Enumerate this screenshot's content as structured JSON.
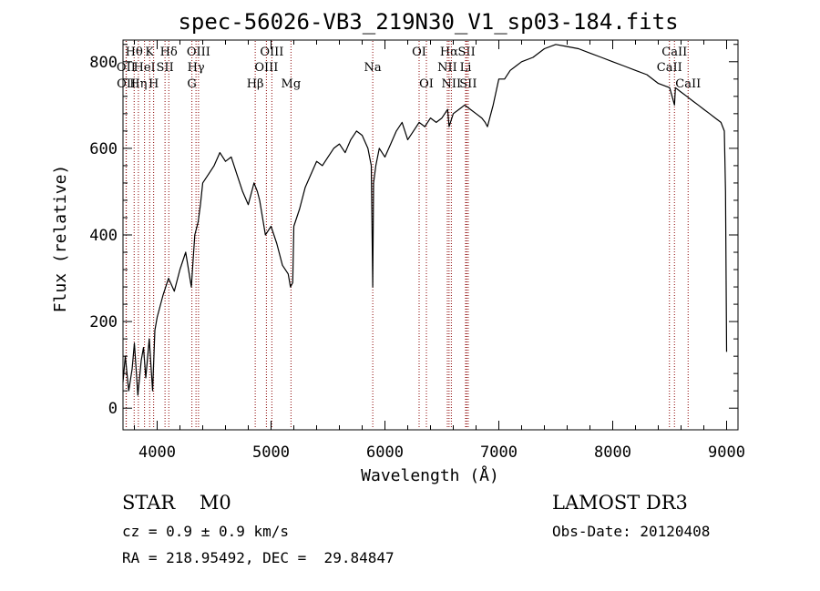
{
  "chart_data": {
    "type": "line",
    "title": "spec-56026-VB3_219N30_V1_sp03-184.fits",
    "xlabel": "Wavelength (Å)",
    "ylabel": "Flux (relative)",
    "xlim": [
      3700,
      9100
    ],
    "ylim": [
      -50,
      850
    ],
    "xticks": [
      4000,
      5000,
      6000,
      7000,
      8000,
      9000
    ],
    "yticks": [
      0,
      200,
      400,
      600,
      800
    ],
    "grid": false,
    "colors": {
      "spectrum": "#000000",
      "line_marker": "#8b0000"
    },
    "series": [
      {
        "x": [
          3700,
          3720,
          3750,
          3780,
          3800,
          3830,
          3860,
          3880,
          3900,
          3930,
          3960,
          3980,
          4000,
          4050,
          4100,
          4150,
          4200,
          4250,
          4300,
          4330,
          4360,
          4380,
          4400,
          4450,
          4500,
          4550,
          4600,
          4650,
          4700,
          4750,
          4800,
          4850,
          4880,
          4900,
          4950,
          5000,
          5050,
          5100,
          5150,
          5170,
          5190,
          5200,
          5250,
          5300,
          5350,
          5400,
          5450,
          5500,
          5550,
          5600,
          5650,
          5700,
          5750,
          5800,
          5850,
          5880,
          5893,
          5900,
          5920,
          5950,
          6000,
          6050,
          6100,
          6150,
          6200,
          6250,
          6300,
          6350,
          6400,
          6450,
          6500,
          6550,
          6563,
          6600,
          6650,
          6700,
          6750,
          6800,
          6850,
          6880,
          6900,
          6950,
          7000,
          7050,
          7100,
          7150,
          7200,
          7300,
          7400,
          7500,
          7600,
          7700,
          7800,
          7900,
          8000,
          8100,
          8200,
          8300,
          8400,
          8500,
          8542,
          8550,
          8600,
          8650,
          8700,
          8750,
          8800,
          8850,
          8900,
          8950,
          8980,
          8990,
          9000
        ],
        "y": [
          60,
          120,
          40,
          90,
          150,
          30,
          110,
          140,
          70,
          160,
          40,
          180,
          210,
          260,
          300,
          270,
          320,
          360,
          280,
          400,
          430,
          470,
          520,
          540,
          560,
          590,
          570,
          580,
          540,
          500,
          470,
          520,
          500,
          480,
          400,
          420,
          380,
          330,
          310,
          280,
          290,
          420,
          460,
          510,
          540,
          570,
          560,
          580,
          600,
          610,
          590,
          620,
          640,
          630,
          600,
          560,
          280,
          520,
          560,
          600,
          580,
          610,
          640,
          660,
          620,
          640,
          660,
          650,
          670,
          660,
          670,
          690,
          650,
          680,
          690,
          700,
          690,
          680,
          670,
          660,
          650,
          700,
          760,
          760,
          780,
          790,
          800,
          810,
          830,
          840,
          835,
          830,
          820,
          810,
          800,
          790,
          780,
          770,
          750,
          740,
          700,
          740,
          730,
          720,
          710,
          700,
          690,
          680,
          670,
          660,
          640,
          500,
          130
        ]
      }
    ],
    "line_markers": [
      {
        "label": "Hθ",
        "wl": 3798,
        "row": 0
      },
      {
        "label": "OII",
        "wl": 3727,
        "row": 1
      },
      {
        "label": "OII",
        "wl": 3729,
        "row": 2
      },
      {
        "label": "K",
        "wl": 3934,
        "row": 0
      },
      {
        "label": "HeI",
        "wl": 3889,
        "row": 1
      },
      {
        "label": "Hη",
        "wl": 3835,
        "row": 2
      },
      {
        "label": "H",
        "wl": 3969,
        "row": 2
      },
      {
        "label": "SII",
        "wl": 4069,
        "row": 1
      },
      {
        "label": "Hδ",
        "wl": 4102,
        "row": 0
      },
      {
        "label": "OIII",
        "wl": 4363,
        "row": 0
      },
      {
        "label": "Hγ",
        "wl": 4341,
        "row": 1
      },
      {
        "label": "G",
        "wl": 4305,
        "row": 2
      },
      {
        "label": "Hβ",
        "wl": 4861,
        "row": 2
      },
      {
        "label": "OIII",
        "wl": 5007,
        "row": 0
      },
      {
        "label": "OIII",
        "wl": 4959,
        "row": 1
      },
      {
        "label": "Mg",
        "wl": 5175,
        "row": 2
      },
      {
        "label": "Na",
        "wl": 5893,
        "row": 1
      },
      {
        "label": "OI",
        "wl": 6300,
        "row": 0
      },
      {
        "label": "OI",
        "wl": 6364,
        "row": 2
      },
      {
        "label": "Hα",
        "wl": 6563,
        "row": 0
      },
      {
        "label": "SII",
        "wl": 6717,
        "row": 0
      },
      {
        "label": "NII",
        "wl": 6548,
        "row": 1
      },
      {
        "label": "Li",
        "wl": 6708,
        "row": 1
      },
      {
        "label": "NII",
        "wl": 6583,
        "row": 2
      },
      {
        "label": "SII",
        "wl": 6731,
        "row": 2
      },
      {
        "label": "CaII",
        "wl": 8542,
        "row": 0
      },
      {
        "label": "CaII",
        "wl": 8498,
        "row": 1
      },
      {
        "label": "CaII",
        "wl": 8662,
        "row": 2
      }
    ]
  },
  "info": {
    "class_line": "STAR    M0",
    "survey": "LAMOST DR3",
    "cz": "cz = 0.9 ± 0.9 km/s",
    "obs_date": "Obs-Date: 20120408",
    "coords": "RA = 218.95492, DEC =  29.84847"
  }
}
